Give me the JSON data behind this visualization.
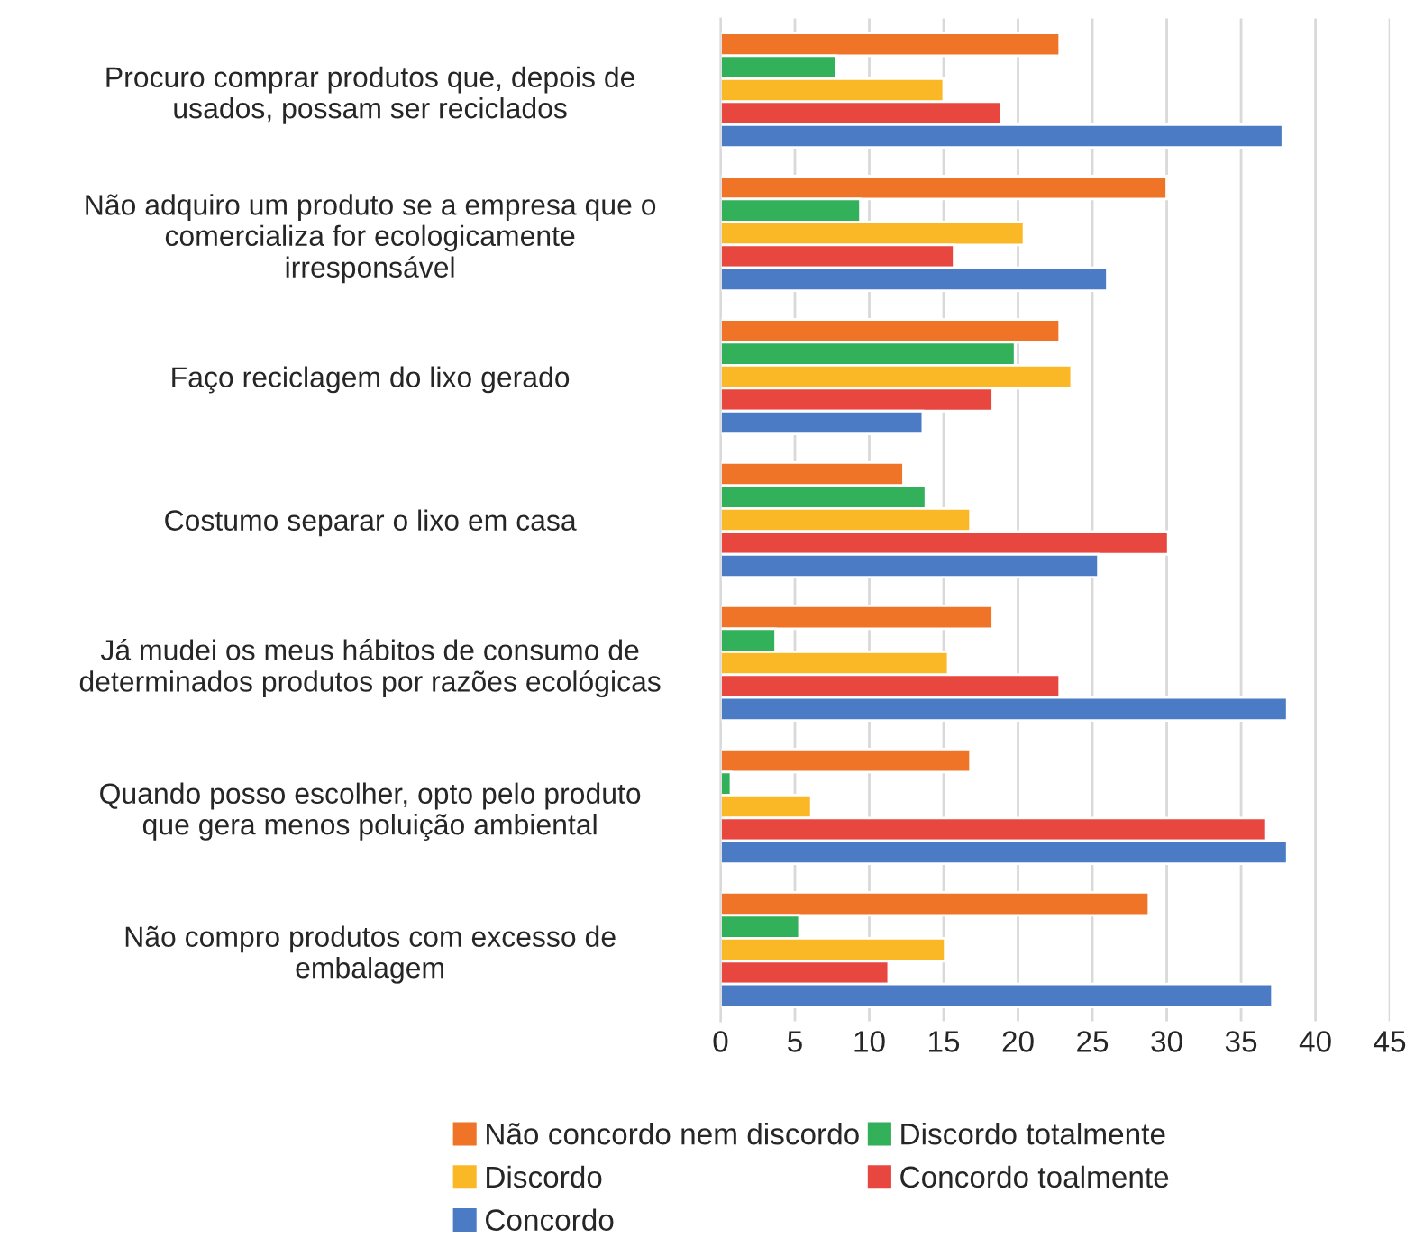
{
  "chart_data": {
    "type": "bar",
    "orientation": "horizontal",
    "categories": [
      "Procuro comprar produtos que, depois de\nusados, possam ser reciclados",
      "Não adquiro um produto se a empresa que o\ncomercializa for ecologicamente\nirresponsável",
      "Faço reciclagem do lixo gerado",
      "Costumo separar o lixo em casa",
      "Já mudei os meus hábitos de consumo de\ndeterminados produtos por razões ecológicas",
      "Quando posso escolher, opto pelo produto\nque gera menos poluição ambiental",
      "Não compro produtos com excesso de\nembalagem"
    ],
    "series": [
      {
        "name": "Não concordo nem discordo",
        "color": "#f07428",
        "values": [
          22.8,
          30.0,
          22.8,
          12.3,
          18.3,
          16.8,
          28.8
        ]
      },
      {
        "name": "Discordo totalmente",
        "color": "#33b05a",
        "values": [
          7.8,
          9.4,
          19.8,
          13.8,
          3.7,
          0.7,
          5.3
        ]
      },
      {
        "name": "Discordo",
        "color": "#fbb826",
        "values": [
          15.0,
          20.4,
          23.6,
          16.8,
          15.3,
          6.1,
          15.1
        ]
      },
      {
        "name": "Concordo toalmente",
        "color": "#e8473f",
        "values": [
          18.9,
          15.7,
          18.3,
          30.1,
          22.8,
          36.7,
          11.3
        ]
      },
      {
        "name": "Concordo",
        "color": "#4a7bc4",
        "values": [
          37.8,
          26.0,
          13.6,
          25.4,
          38.1,
          38.1,
          37.1
        ]
      }
    ],
    "xlim": [
      0,
      45
    ],
    "xticks": [
      0,
      5,
      10,
      15,
      20,
      25,
      30,
      35,
      40,
      45
    ],
    "grid": "x",
    "legend": "bottom"
  }
}
